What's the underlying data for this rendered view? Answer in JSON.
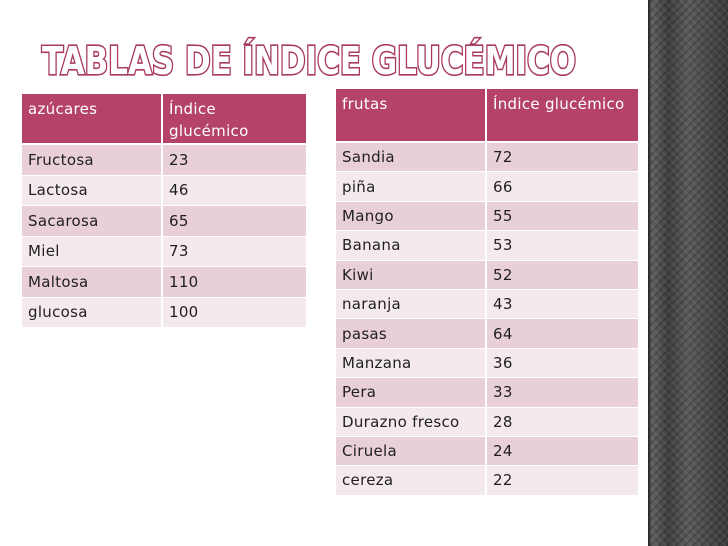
{
  "title": "Tablas de índice glucémico",
  "colors": {
    "header_bg": "#b4426a",
    "row_odd": "#e9d0d8",
    "row_even": "#f4eaee",
    "title_fill": "#ffffff",
    "title_stroke": "#a93b63",
    "side_band": "#4a4a4a"
  },
  "sugars_table": {
    "headers": [
      "azúcares",
      "Índice glucémico"
    ],
    "rows": [
      [
        "Fructosa",
        "23"
      ],
      [
        "Lactosa",
        "46"
      ],
      [
        "Sacarosa",
        "65"
      ],
      [
        "Miel",
        "73"
      ],
      [
        "Maltosa",
        "110"
      ],
      [
        "glucosa",
        "100"
      ]
    ]
  },
  "fruits_table": {
    "headers": [
      "frutas",
      "Índice glucémico"
    ],
    "rows": [
      [
        "Sandia",
        "72"
      ],
      [
        "piña",
        "66"
      ],
      [
        "Mango",
        "55"
      ],
      [
        "Banana",
        "53"
      ],
      [
        "Kiwi",
        "52"
      ],
      [
        "naranja",
        "43"
      ],
      [
        "pasas",
        "64"
      ],
      [
        "Manzana",
        "36"
      ],
      [
        "Pera",
        "33"
      ],
      [
        "Durazno fresco",
        "28"
      ],
      [
        "Ciruela",
        "24"
      ],
      [
        "cereza",
        "22"
      ]
    ]
  }
}
